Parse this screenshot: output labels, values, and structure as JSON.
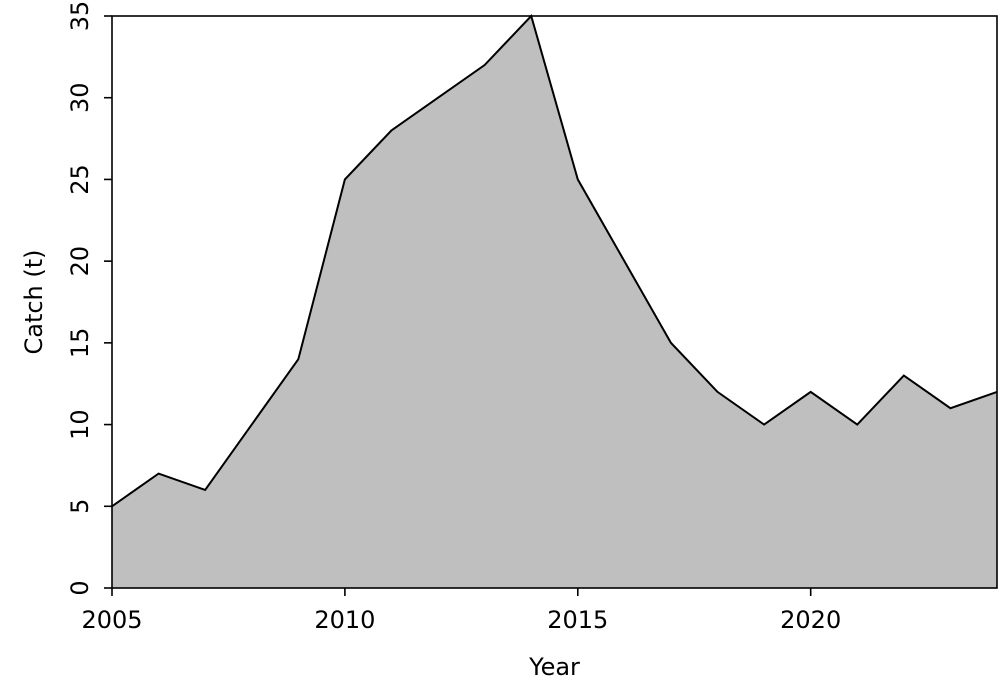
{
  "chart_data": {
    "type": "area",
    "title": "",
    "xlabel": "Year",
    "ylabel": "Catch (t)",
    "xlim": [
      2005,
      2024
    ],
    "ylim": [
      0,
      35
    ],
    "x_ticks": [
      2005,
      2010,
      2015,
      2020
    ],
    "y_ticks": [
      0,
      5,
      10,
      15,
      20,
      25,
      30,
      35
    ],
    "grid": false,
    "fill_color": "#bfbfbf",
    "line_color": "#000000",
    "series": [
      {
        "x": [
          2005,
          2006,
          2007,
          2008,
          2009,
          2010,
          2011,
          2012,
          2013,
          2014,
          2015,
          2016,
          2017,
          2018,
          2019,
          2020,
          2021,
          2022,
          2023,
          2024
        ],
        "values": [
          5,
          7,
          6,
          10,
          14,
          25,
          28,
          30,
          32,
          35,
          25,
          20,
          15,
          12,
          10,
          12,
          10,
          13,
          11,
          12
        ]
      }
    ]
  }
}
